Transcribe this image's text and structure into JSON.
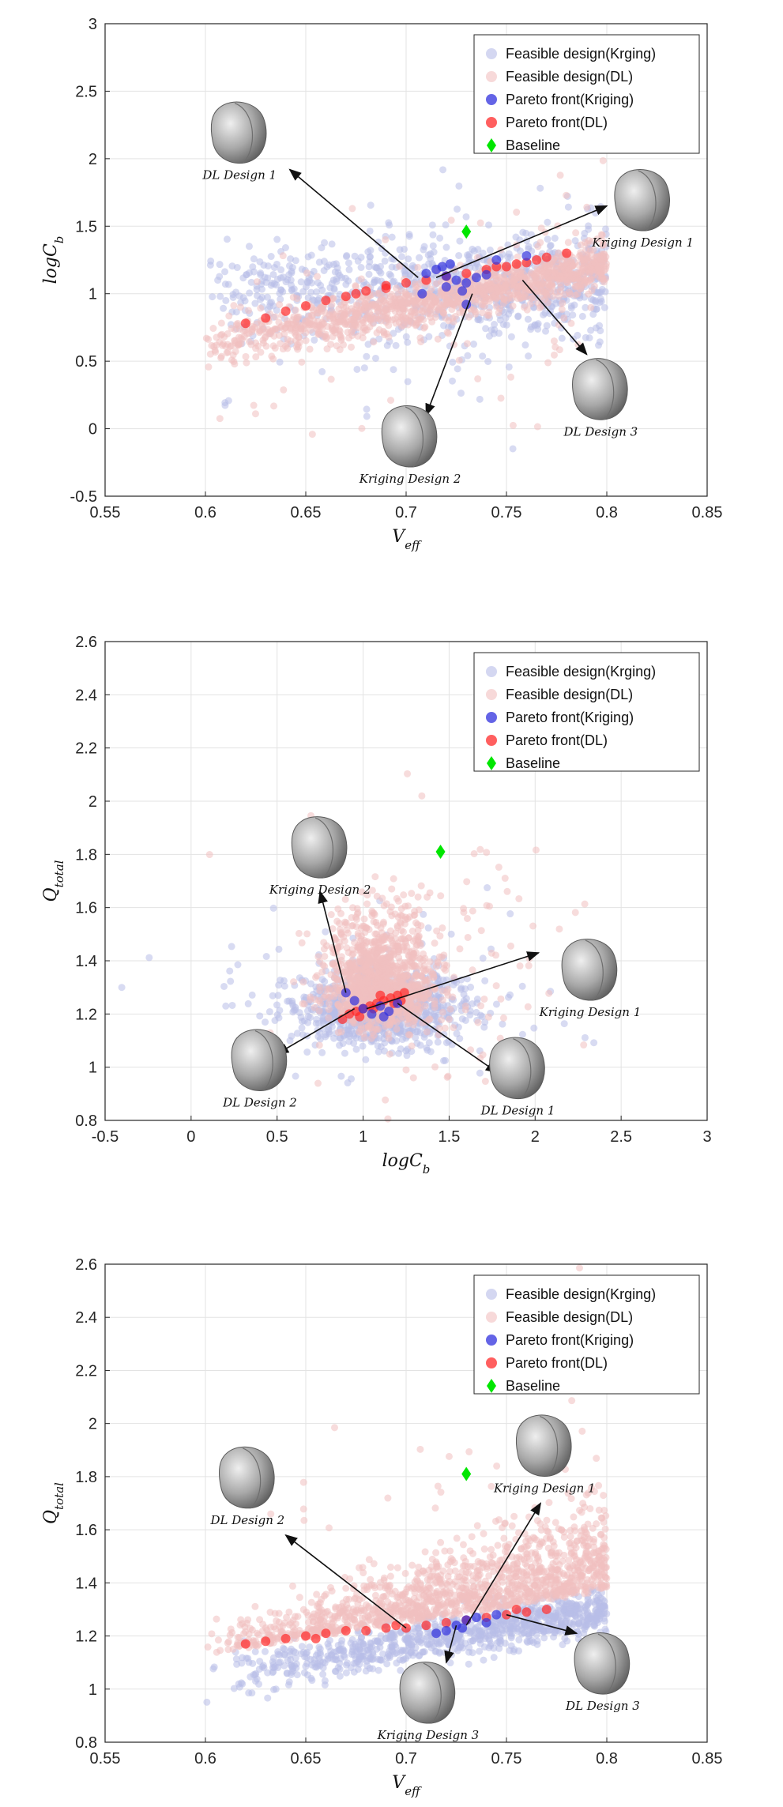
{
  "legend_entries": [
    "Feasible design(Krging)",
    "Feasible design(DL)",
    "Pareto front(Kriging)",
    "Pareto front(DL)",
    "Baseline"
  ],
  "colors": {
    "feasible_kriging": "#b8bde8",
    "feasible_dl": "#f1c0c0",
    "pareto_kriging": "#3030dd",
    "pareto_dl": "#ff2a2a",
    "baseline": "#00e600"
  },
  "chart_data": [
    {
      "type": "scatter",
      "xlabel_base": "V",
      "xlabel_sub": "eff",
      "ylabel_base": "logC",
      "ylabel_sub": "b",
      "xlim": [
        0.55,
        0.85
      ],
      "ylim": [
        -0.5,
        3
      ],
      "xticks": [
        "0.55",
        "0.6",
        "0.65",
        "0.7",
        "0.75",
        "0.8",
        "0.85"
      ],
      "yticks": [
        "-0.5",
        "0",
        "0.5",
        "1",
        "1.5",
        "2",
        "2.5",
        "3"
      ],
      "grid": true,
      "legend": "top-right",
      "baseline": [
        0.73,
        1.46
      ],
      "pareto_kriging": [
        [
          0.71,
          1.15
        ],
        [
          0.715,
          1.18
        ],
        [
          0.72,
          1.13
        ],
        [
          0.725,
          1.1
        ],
        [
          0.73,
          1.08
        ],
        [
          0.735,
          1.12
        ],
        [
          0.72,
          1.05
        ],
        [
          0.728,
          1.02
        ],
        [
          0.718,
          1.2
        ],
        [
          0.74,
          1.14
        ],
        [
          0.73,
          0.92
        ],
        [
          0.708,
          1.0
        ],
        [
          0.722,
          1.22
        ],
        [
          0.745,
          1.25
        ],
        [
          0.76,
          1.28
        ]
      ],
      "pareto_dl": [
        [
          0.62,
          0.78
        ],
        [
          0.63,
          0.82
        ],
        [
          0.64,
          0.87
        ],
        [
          0.65,
          0.91
        ],
        [
          0.66,
          0.95
        ],
        [
          0.67,
          0.98
        ],
        [
          0.68,
          1.02
        ],
        [
          0.69,
          1.04
        ],
        [
          0.7,
          1.08
        ],
        [
          0.71,
          1.1
        ],
        [
          0.72,
          1.13
        ],
        [
          0.73,
          1.15
        ],
        [
          0.74,
          1.18
        ],
        [
          0.75,
          1.2
        ],
        [
          0.76,
          1.23
        ],
        [
          0.77,
          1.27
        ],
        [
          0.78,
          1.3
        ],
        [
          0.765,
          1.25
        ],
        [
          0.755,
          1.22
        ],
        [
          0.745,
          1.2
        ],
        [
          0.69,
          1.06
        ],
        [
          0.675,
          1.0
        ]
      ],
      "annotations": [
        {
          "label": "DL Design 1",
          "tip": [
            0.642,
            1.92
          ],
          "from": [
            0.706,
            1.12
          ],
          "img": [
            0.617,
            2.2
          ]
        },
        {
          "label": "Kriging Design 1",
          "tip": [
            0.8,
            1.65
          ],
          "from": [
            0.715,
            1.12
          ],
          "img": [
            0.818,
            1.7
          ]
        },
        {
          "label": "Kriging Design 2",
          "tip": [
            0.71,
            0.1
          ],
          "from": [
            0.733,
            1.0
          ],
          "img": [
            0.702,
            -0.05
          ]
        },
        {
          "label": "DL Design 3",
          "tip": [
            0.79,
            0.55
          ],
          "from": [
            0.758,
            1.1
          ],
          "img": [
            0.797,
            0.3
          ]
        }
      ]
    },
    {
      "type": "scatter",
      "xlabel_base": "logC",
      "xlabel_sub": "b",
      "ylabel_base": "Q",
      "ylabel_sub": "total",
      "xlim": [
        -0.5,
        3
      ],
      "ylim": [
        0.8,
        2.6
      ],
      "xticks": [
        "-0.5",
        "0",
        "0.5",
        "1",
        "1.5",
        "2",
        "2.5",
        "3"
      ],
      "yticks": [
        "0.8",
        "1",
        "1.2",
        "1.4",
        "1.6",
        "1.8",
        "2",
        "2.2",
        "2.4",
        "2.6"
      ],
      "grid": true,
      "legend": "top-right",
      "baseline": [
        1.45,
        1.81
      ],
      "pareto_kriging": [
        [
          0.9,
          1.28
        ],
        [
          0.95,
          1.25
        ],
        [
          1.0,
          1.22
        ],
        [
          1.05,
          1.2
        ],
        [
          1.1,
          1.23
        ],
        [
          1.15,
          1.21
        ],
        [
          1.2,
          1.24
        ],
        [
          1.12,
          1.19
        ]
      ],
      "pareto_dl": [
        [
          0.88,
          1.18
        ],
        [
          0.92,
          1.2
        ],
        [
          0.96,
          1.21
        ],
        [
          1.0,
          1.22
        ],
        [
          1.04,
          1.23
        ],
        [
          1.08,
          1.24
        ],
        [
          1.12,
          1.25
        ],
        [
          1.16,
          1.26
        ],
        [
          1.2,
          1.27
        ],
        [
          1.24,
          1.28
        ],
        [
          0.98,
          1.19
        ],
        [
          1.06,
          1.22
        ],
        [
          1.18,
          1.24
        ],
        [
          1.1,
          1.27
        ],
        [
          1.22,
          1.25
        ]
      ],
      "annotations": [
        {
          "label": "Kriging Design 2",
          "tip": [
            0.75,
            1.66
          ],
          "from": [
            0.9,
            1.28
          ],
          "img": [
            0.75,
            1.83
          ]
        },
        {
          "label": "Kriging Design 1",
          "tip": [
            2.02,
            1.43
          ],
          "from": [
            1.02,
            1.22
          ],
          "img": [
            2.32,
            1.37
          ]
        },
        {
          "label": "DL Design 2",
          "tip": [
            0.5,
            1.05
          ],
          "from": [
            0.95,
            1.22
          ],
          "img": [
            0.4,
            1.03
          ]
        },
        {
          "label": "DL Design 1",
          "tip": [
            1.78,
            0.98
          ],
          "from": [
            1.2,
            1.24
          ],
          "img": [
            1.9,
            1.0
          ]
        }
      ]
    },
    {
      "type": "scatter",
      "xlabel_base": "V",
      "xlabel_sub": "eff",
      "ylabel_base": "Q",
      "ylabel_sub": "total",
      "xlim": [
        0.55,
        0.85
      ],
      "ylim": [
        0.8,
        2.6
      ],
      "xticks": [
        "0.55",
        "0.6",
        "0.65",
        "0.7",
        "0.75",
        "0.8",
        "0.85"
      ],
      "yticks": [
        "0.8",
        "1",
        "1.2",
        "1.4",
        "1.6",
        "1.8",
        "2",
        "2.2",
        "2.4",
        "2.6"
      ],
      "grid": true,
      "legend": "top-right",
      "baseline": [
        0.73,
        1.81
      ],
      "pareto_kriging": [
        [
          0.72,
          1.22
        ],
        [
          0.725,
          1.24
        ],
        [
          0.73,
          1.26
        ],
        [
          0.735,
          1.27
        ],
        [
          0.74,
          1.25
        ],
        [
          0.745,
          1.28
        ],
        [
          0.715,
          1.21
        ],
        [
          0.728,
          1.23
        ]
      ],
      "pareto_dl": [
        [
          0.62,
          1.17
        ],
        [
          0.63,
          1.18
        ],
        [
          0.64,
          1.19
        ],
        [
          0.65,
          1.2
        ],
        [
          0.66,
          1.21
        ],
        [
          0.67,
          1.22
        ],
        [
          0.68,
          1.22
        ],
        [
          0.69,
          1.23
        ],
        [
          0.7,
          1.23
        ],
        [
          0.71,
          1.24
        ],
        [
          0.72,
          1.25
        ],
        [
          0.73,
          1.26
        ],
        [
          0.74,
          1.27
        ],
        [
          0.75,
          1.28
        ],
        [
          0.76,
          1.29
        ],
        [
          0.77,
          1.3
        ],
        [
          0.655,
          1.19
        ],
        [
          0.695,
          1.24
        ],
        [
          0.755,
          1.3
        ]
      ],
      "annotations": [
        {
          "label": "DL Design 2",
          "tip": [
            0.64,
            1.58
          ],
          "from": [
            0.7,
            1.23
          ],
          "img": [
            0.621,
            1.8
          ]
        },
        {
          "label": "Kriging Design 1",
          "tip": [
            0.767,
            1.7
          ],
          "from": [
            0.73,
            1.24
          ],
          "img": [
            0.769,
            1.92
          ]
        },
        {
          "label": "Kriging Design 3",
          "tip": [
            0.72,
            1.1
          ],
          "from": [
            0.725,
            1.24
          ],
          "img": [
            0.711,
            0.99
          ]
        },
        {
          "label": "DL Design 3",
          "tip": [
            0.785,
            1.21
          ],
          "from": [
            0.75,
            1.28
          ],
          "img": [
            0.798,
            1.1
          ]
        }
      ]
    }
  ]
}
